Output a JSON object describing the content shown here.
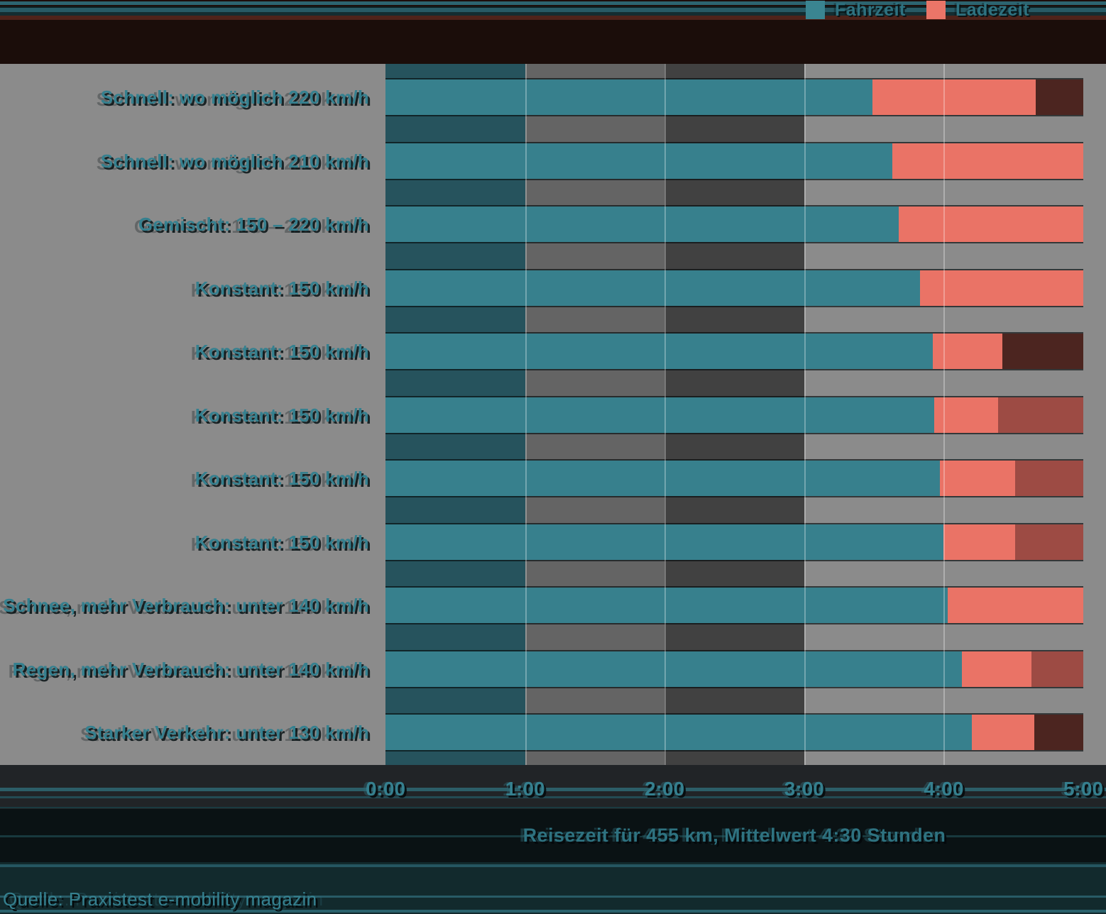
{
  "source": "Quelle: Praxistest e-mobility magazin",
  "colors": {
    "fahrzeit_teal": "#37808D",
    "ladezeit_salmon": "#EA7366",
    "tail_dark": "#4C2520",
    "tail_brick": "#9D4B44",
    "background_gray": "#8B8B8B",
    "gap_band_dark_teal": "#26535D",
    "gap_band_gray": "#646464",
    "gap_band_dark_gray": "#414141",
    "header_black": "#1B0D0A",
    "accent_text_teal": "#2E7280"
  },
  "chart_data": {
    "type": "bar",
    "orientation": "horizontal",
    "stacked": true,
    "xlabel": "Reisezeit für 455 km, Mittelwert 4:30 Stunden",
    "x_ticks": [
      "0:00",
      "1:00",
      "2:00",
      "3:00",
      "4:00",
      "5:00"
    ],
    "xlim_hours": [
      0,
      5
    ],
    "grid": "hourly vertical lines",
    "legend": [
      "Fahrzeit",
      "Ladezeit"
    ],
    "legend_position": "top-right",
    "rows": [
      {
        "label": "Schnell: wo möglich 220 km/h",
        "fahrzeit_h": 3.49,
        "fahrzeit": "3:30",
        "ladezeit_end_h": 4.66,
        "ladezeit_end": "4:40",
        "bar_end_h": 5.0,
        "tail": "dark"
      },
      {
        "label": "Schnell: wo möglich 210 km/h",
        "fahrzeit_h": 3.63,
        "fahrzeit": "3:38",
        "ladezeit_end_h": 5.0,
        "ladezeit_end": "5:00",
        "bar_end_h": 5.0,
        "tail": null
      },
      {
        "label": "Gemischt: 150 – 220 km/h",
        "fahrzeit_h": 3.68,
        "fahrzeit": "3:41",
        "ladezeit_end_h": 5.0,
        "ladezeit_end": "5:00",
        "bar_end_h": 5.0,
        "tail": null
      },
      {
        "label": "Konstant: 150 km/h",
        "fahrzeit_h": 3.83,
        "fahrzeit": "3:50",
        "ladezeit_end_h": 5.0,
        "ladezeit_end": "5:00",
        "bar_end_h": 5.0,
        "tail": null
      },
      {
        "label": "Konstant: 150 km/h",
        "fahrzeit_h": 3.92,
        "fahrzeit": "3:55",
        "ladezeit_end_h": 4.42,
        "ladezeit_end": "4:25",
        "bar_end_h": 5.0,
        "tail": "dark"
      },
      {
        "label": "Konstant: 150 km/h",
        "fahrzeit_h": 3.93,
        "fahrzeit": "3:56",
        "ladezeit_end_h": 4.39,
        "ladezeit_end": "4:23",
        "bar_end_h": 5.0,
        "tail": "brick"
      },
      {
        "label": "Konstant: 150 km/h",
        "fahrzeit_h": 3.97,
        "fahrzeit": "3:58",
        "ladezeit_end_h": 4.51,
        "ladezeit_end": "4:31",
        "bar_end_h": 5.0,
        "tail": "brick"
      },
      {
        "label": "Konstant: 150 km/h",
        "fahrzeit_h": 4.0,
        "fahrzeit": "4:00",
        "ladezeit_end_h": 4.51,
        "ladezeit_end": "4:31",
        "bar_end_h": 5.0,
        "tail": "brick"
      },
      {
        "label": "Schnee, mehr Verbrauch: unter 140 km/h",
        "fahrzeit_h": 4.03,
        "fahrzeit": "4:02",
        "ladezeit_end_h": 5.0,
        "ladezeit_end": "5:00",
        "bar_end_h": 5.0,
        "tail": null
      },
      {
        "label": "Regen, mehr Verbrauch: unter 140 km/h",
        "fahrzeit_h": 4.13,
        "fahrzeit": "4:08",
        "ladezeit_end_h": 4.63,
        "ladezeit_end": "4:38",
        "bar_end_h": 5.0,
        "tail": "brick"
      },
      {
        "label": "Starker Verkehr: unter 130 km/h",
        "fahrzeit_h": 4.2,
        "fahrzeit": "4:12",
        "ladezeit_end_h": 4.65,
        "ladezeit_end": "4:39",
        "bar_end_h": 5.0,
        "tail": "dark"
      }
    ]
  }
}
